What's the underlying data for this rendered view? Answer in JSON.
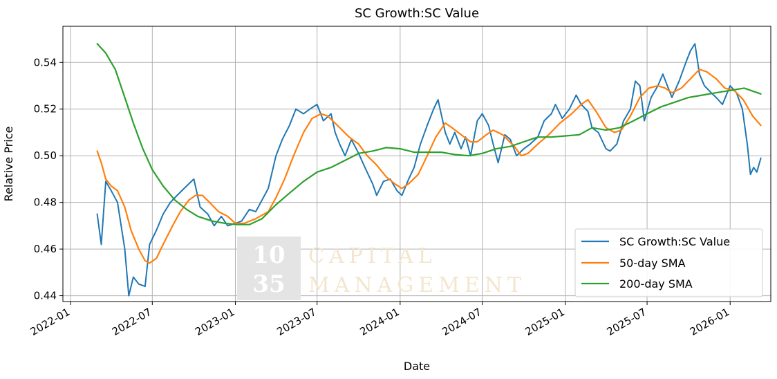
{
  "chart_data": {
    "type": "line",
    "title": "SC Growth:SC Value",
    "xlabel": "Date",
    "ylabel": "Relative Price",
    "xlim": [
      "2021-12-15",
      "2026-04-01"
    ],
    "ylim": [
      0.4375,
      0.5555
    ],
    "xticks": [
      "2022-01",
      "2022-07",
      "2023-01",
      "2023-07",
      "2024-01",
      "2024-07",
      "2025-01",
      "2025-07",
      "2026-01"
    ],
    "yticks": [
      0.44,
      0.46,
      0.48,
      0.5,
      0.52,
      0.54
    ],
    "yticklabels": [
      "0.44",
      "0.46",
      "0.48",
      "0.50",
      "0.52",
      "0.54"
    ],
    "grid": true,
    "legend_position": "lower right",
    "series": [
      {
        "name": "SC Growth:SC Value",
        "color": "#1f77b4",
        "points": [
          [
            "2022-03-01",
            0.475
          ],
          [
            "2022-03-10",
            0.462
          ],
          [
            "2022-03-20",
            0.489
          ],
          [
            "2022-04-01",
            0.485
          ],
          [
            "2022-04-15",
            0.48
          ],
          [
            "2022-05-01",
            0.46
          ],
          [
            "2022-05-10",
            0.44
          ],
          [
            "2022-05-20",
            0.448
          ],
          [
            "2022-06-01",
            0.445
          ],
          [
            "2022-06-15",
            0.444
          ],
          [
            "2022-06-25",
            0.462
          ],
          [
            "2022-07-10",
            0.468
          ],
          [
            "2022-07-25",
            0.475
          ],
          [
            "2022-08-10",
            0.48
          ],
          [
            "2022-08-25",
            0.483
          ],
          [
            "2022-09-15",
            0.487
          ],
          [
            "2022-10-01",
            0.49
          ],
          [
            "2022-10-15",
            0.478
          ],
          [
            "2022-11-01",
            0.475
          ],
          [
            "2022-11-15",
            0.47
          ],
          [
            "2022-12-01",
            0.474
          ],
          [
            "2022-12-15",
            0.47
          ],
          [
            "2023-01-01",
            0.471
          ],
          [
            "2023-01-15",
            0.472
          ],
          [
            "2023-02-01",
            0.477
          ],
          [
            "2023-02-15",
            0.476
          ],
          [
            "2023-03-01",
            0.481
          ],
          [
            "2023-03-15",
            0.486
          ],
          [
            "2023-04-01",
            0.5
          ],
          [
            "2023-04-15",
            0.507
          ],
          [
            "2023-05-01",
            0.513
          ],
          [
            "2023-05-15",
            0.52
          ],
          [
            "2023-06-01",
            0.518
          ],
          [
            "2023-06-15",
            0.52
          ],
          [
            "2023-07-01",
            0.522
          ],
          [
            "2023-07-15",
            0.515
          ],
          [
            "2023-08-01",
            0.518
          ],
          [
            "2023-08-10",
            0.51
          ],
          [
            "2023-08-20",
            0.505
          ],
          [
            "2023-09-01",
            0.5
          ],
          [
            "2023-09-15",
            0.507
          ],
          [
            "2023-10-01",
            0.501
          ],
          [
            "2023-10-15",
            0.495
          ],
          [
            "2023-11-01",
            0.488
          ],
          [
            "2023-11-10",
            0.483
          ],
          [
            "2023-11-25",
            0.489
          ],
          [
            "2023-12-10",
            0.49
          ],
          [
            "2023-12-25",
            0.485
          ],
          [
            "2024-01-05",
            0.483
          ],
          [
            "2024-01-20",
            0.49
          ],
          [
            "2024-02-01",
            0.495
          ],
          [
            "2024-02-15",
            0.505
          ],
          [
            "2024-03-01",
            0.513
          ],
          [
            "2024-03-15",
            0.52
          ],
          [
            "2024-03-25",
            0.524
          ],
          [
            "2024-04-10",
            0.51
          ],
          [
            "2024-04-20",
            0.505
          ],
          [
            "2024-05-01",
            0.51
          ],
          [
            "2024-05-15",
            0.503
          ],
          [
            "2024-05-25",
            0.508
          ],
          [
            "2024-06-05",
            0.5
          ],
          [
            "2024-06-20",
            0.515
          ],
          [
            "2024-07-01",
            0.518
          ],
          [
            "2024-07-15",
            0.513
          ],
          [
            "2024-07-25",
            0.505
          ],
          [
            "2024-08-05",
            0.497
          ],
          [
            "2024-08-20",
            0.509
          ],
          [
            "2024-09-01",
            0.507
          ],
          [
            "2024-09-15",
            0.5
          ],
          [
            "2024-10-01",
            0.503
          ],
          [
            "2024-10-15",
            0.505
          ],
          [
            "2024-11-01",
            0.508
          ],
          [
            "2024-11-15",
            0.515
          ],
          [
            "2024-12-01",
            0.518
          ],
          [
            "2024-12-10",
            0.522
          ],
          [
            "2024-12-25",
            0.516
          ],
          [
            "2025-01-10",
            0.52
          ],
          [
            "2025-01-25",
            0.526
          ],
          [
            "2025-02-05",
            0.522
          ],
          [
            "2025-02-20",
            0.519
          ],
          [
            "2025-03-01",
            0.512
          ],
          [
            "2025-03-15",
            0.51
          ],
          [
            "2025-04-01",
            0.503
          ],
          [
            "2025-04-10",
            0.502
          ],
          [
            "2025-04-25",
            0.505
          ],
          [
            "2025-05-10",
            0.515
          ],
          [
            "2025-05-25",
            0.52
          ],
          [
            "2025-06-05",
            0.532
          ],
          [
            "2025-06-15",
            0.53
          ],
          [
            "2025-06-25",
            0.515
          ],
          [
            "2025-07-10",
            0.525
          ],
          [
            "2025-07-25",
            0.53
          ],
          [
            "2025-08-05",
            0.535
          ],
          [
            "2025-08-15",
            0.53
          ],
          [
            "2025-08-25",
            0.525
          ],
          [
            "2025-09-10",
            0.532
          ],
          [
            "2025-09-25",
            0.54
          ],
          [
            "2025-10-05",
            0.545
          ],
          [
            "2025-10-15",
            0.548
          ],
          [
            "2025-10-25",
            0.535
          ],
          [
            "2025-11-05",
            0.53
          ],
          [
            "2025-11-20",
            0.527
          ],
          [
            "2025-12-01",
            0.525
          ],
          [
            "2025-12-15",
            0.522
          ],
          [
            "2026-01-01",
            0.53
          ],
          [
            "2026-01-15",
            0.527
          ],
          [
            "2026-01-28",
            0.52
          ],
          [
            "2026-02-08",
            0.505
          ],
          [
            "2026-02-15",
            0.492
          ],
          [
            "2026-02-22",
            0.495
          ],
          [
            "2026-03-01",
            0.493
          ],
          [
            "2026-03-10",
            0.499
          ]
        ]
      },
      {
        "name": "50-day SMA",
        "color": "#ff7f0e",
        "points": [
          [
            "2022-03-01",
            0.502
          ],
          [
            "2022-03-10",
            0.497
          ],
          [
            "2022-03-20",
            0.49
          ],
          [
            "2022-04-01",
            0.487
          ],
          [
            "2022-04-15",
            0.485
          ],
          [
            "2022-05-01",
            0.478
          ],
          [
            "2022-05-15",
            0.468
          ],
          [
            "2022-06-01",
            0.46
          ],
          [
            "2022-06-15",
            0.455
          ],
          [
            "2022-06-25",
            0.454
          ],
          [
            "2022-07-10",
            0.456
          ],
          [
            "2022-07-25",
            0.462
          ],
          [
            "2022-08-15",
            0.47
          ],
          [
            "2022-09-01",
            0.476
          ],
          [
            "2022-09-20",
            0.481
          ],
          [
            "2022-10-05",
            0.483
          ],
          [
            "2022-10-20",
            0.483
          ],
          [
            "2022-11-05",
            0.48
          ],
          [
            "2022-11-25",
            0.476
          ],
          [
            "2022-12-15",
            0.474
          ],
          [
            "2023-01-01",
            0.471
          ],
          [
            "2023-01-20",
            0.471
          ],
          [
            "2023-02-15",
            0.473
          ],
          [
            "2023-03-15",
            0.476
          ],
          [
            "2023-04-01",
            0.482
          ],
          [
            "2023-04-20",
            0.49
          ],
          [
            "2023-05-10",
            0.5
          ],
          [
            "2023-06-01",
            0.51
          ],
          [
            "2023-06-20",
            0.516
          ],
          [
            "2023-07-10",
            0.518
          ],
          [
            "2023-07-25",
            0.517
          ],
          [
            "2023-08-15",
            0.513
          ],
          [
            "2023-09-10",
            0.508
          ],
          [
            "2023-10-01",
            0.505
          ],
          [
            "2023-10-20",
            0.5
          ],
          [
            "2023-11-10",
            0.496
          ],
          [
            "2023-12-01",
            0.491
          ],
          [
            "2023-12-20",
            0.488
          ],
          [
            "2024-01-05",
            0.486
          ],
          [
            "2024-01-20",
            0.488
          ],
          [
            "2024-02-10",
            0.492
          ],
          [
            "2024-03-01",
            0.5
          ],
          [
            "2024-03-20",
            0.508
          ],
          [
            "2024-04-10",
            0.514
          ],
          [
            "2024-04-25",
            0.512
          ],
          [
            "2024-05-15",
            0.509
          ],
          [
            "2024-06-05",
            0.506
          ],
          [
            "2024-06-20",
            0.506
          ],
          [
            "2024-07-10",
            0.509
          ],
          [
            "2024-07-25",
            0.511
          ],
          [
            "2024-08-15",
            0.509
          ],
          [
            "2024-09-10",
            0.504
          ],
          [
            "2024-09-25",
            0.5
          ],
          [
            "2024-10-10",
            0.501
          ],
          [
            "2024-11-01",
            0.505
          ],
          [
            "2024-11-25",
            0.509
          ],
          [
            "2024-12-20",
            0.514
          ],
          [
            "2025-01-15",
            0.518
          ],
          [
            "2025-02-05",
            0.522
          ],
          [
            "2025-02-20",
            0.524
          ],
          [
            "2025-03-10",
            0.519
          ],
          [
            "2025-04-01",
            0.512
          ],
          [
            "2025-04-20",
            0.51
          ],
          [
            "2025-05-05",
            0.511
          ],
          [
            "2025-05-25",
            0.517
          ],
          [
            "2025-06-15",
            0.525
          ],
          [
            "2025-07-05",
            0.529
          ],
          [
            "2025-07-25",
            0.53
          ],
          [
            "2025-08-10",
            0.529
          ],
          [
            "2025-08-25",
            0.527
          ],
          [
            "2025-09-15",
            0.529
          ],
          [
            "2025-10-05",
            0.533
          ],
          [
            "2025-10-25",
            0.537
          ],
          [
            "2025-11-10",
            0.536
          ],
          [
            "2025-12-01",
            0.533
          ],
          [
            "2025-12-20",
            0.529
          ],
          [
            "2026-01-10",
            0.528
          ],
          [
            "2026-01-30",
            0.524
          ],
          [
            "2026-02-20",
            0.517
          ],
          [
            "2026-03-10",
            0.513
          ]
        ]
      },
      {
        "name": "200-day SMA",
        "color": "#2ca02c",
        "points": [
          [
            "2022-03-01",
            0.548
          ],
          [
            "2022-03-20",
            0.544
          ],
          [
            "2022-04-10",
            0.537
          ],
          [
            "2022-05-01",
            0.525
          ],
          [
            "2022-05-20",
            0.514
          ],
          [
            "2022-06-10",
            0.503
          ],
          [
            "2022-07-01",
            0.494
          ],
          [
            "2022-07-25",
            0.487
          ],
          [
            "2022-08-20",
            0.481
          ],
          [
            "2022-09-15",
            0.477
          ],
          [
            "2022-10-10",
            0.474
          ],
          [
            "2022-11-10",
            0.472
          ],
          [
            "2022-12-10",
            0.471
          ],
          [
            "2023-01-05",
            0.4705
          ],
          [
            "2023-02-01",
            0.4705
          ],
          [
            "2023-03-01",
            0.473
          ],
          [
            "2023-04-01",
            0.479
          ],
          [
            "2023-05-01",
            0.484
          ],
          [
            "2023-06-01",
            0.489
          ],
          [
            "2023-07-01",
            0.493
          ],
          [
            "2023-08-01",
            0.495
          ],
          [
            "2023-09-01",
            0.498
          ],
          [
            "2023-10-01",
            0.501
          ],
          [
            "2023-11-01",
            0.502
          ],
          [
            "2023-12-01",
            0.5035
          ],
          [
            "2024-01-01",
            0.503
          ],
          [
            "2024-02-01",
            0.5015
          ],
          [
            "2024-03-01",
            0.5015
          ],
          [
            "2024-04-01",
            0.5015
          ],
          [
            "2024-05-01",
            0.5005
          ],
          [
            "2024-06-01",
            0.5
          ],
          [
            "2024-07-01",
            0.501
          ],
          [
            "2024-08-01",
            0.503
          ],
          [
            "2024-09-01",
            0.504
          ],
          [
            "2024-10-01",
            0.506
          ],
          [
            "2024-11-01",
            0.508
          ],
          [
            "2024-12-01",
            0.508
          ],
          [
            "2025-01-01",
            0.5085
          ],
          [
            "2025-02-01",
            0.509
          ],
          [
            "2025-03-01",
            0.512
          ],
          [
            "2025-04-01",
            0.511
          ],
          [
            "2025-05-01",
            0.512
          ],
          [
            "2025-06-01",
            0.515
          ],
          [
            "2025-07-01",
            0.518
          ],
          [
            "2025-08-01",
            0.521
          ],
          [
            "2025-09-01",
            0.523
          ],
          [
            "2025-10-01",
            0.525
          ],
          [
            "2025-11-01",
            0.526
          ],
          [
            "2025-12-01",
            0.527
          ],
          [
            "2026-01-01",
            0.528
          ],
          [
            "2026-02-01",
            0.529
          ],
          [
            "2026-03-10",
            0.5265
          ]
        ]
      }
    ]
  },
  "watermark": {
    "box_line1": "10",
    "box_line2": "35",
    "line1": "CAPITAL",
    "line2": "MANAGEMENT",
    "box_color": "#e4e4e4",
    "text_color": "#f3e6cf"
  }
}
